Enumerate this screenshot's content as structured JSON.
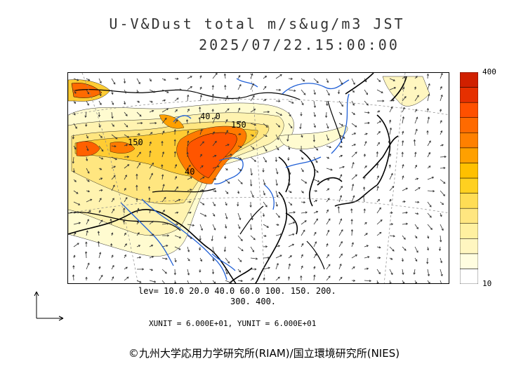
{
  "header": {
    "title": "U-V&Dust total m/s&ug/m3 JST",
    "datetime": "2025/07/22.15:00:00"
  },
  "colorbar": {
    "max_label": "400",
    "min_label": "10",
    "colors": [
      "#ffffff",
      "#fffde0",
      "#fff6c0",
      "#fff0a0",
      "#ffe680",
      "#ffdd55",
      "#ffd020",
      "#ffc000",
      "#ffa000",
      "#ff8000",
      "#ff6a00",
      "#ff5000",
      "#e63000",
      "#d02000"
    ]
  },
  "levels": {
    "line1": "lev= 10.0 20.0 40.0 60.0 100. 150. 200.",
    "line2": "300. 400."
  },
  "units": {
    "text": "XUNIT = 6.000E+01, YUNIT = 6.000E+01"
  },
  "map": {
    "contour_labels": [
      "40.0",
      "150",
      "150",
      "40"
    ]
  },
  "footer": {
    "credit": "©九州大学応用力学研究所(RIAM)/国立環境研究所(NIES)"
  }
}
